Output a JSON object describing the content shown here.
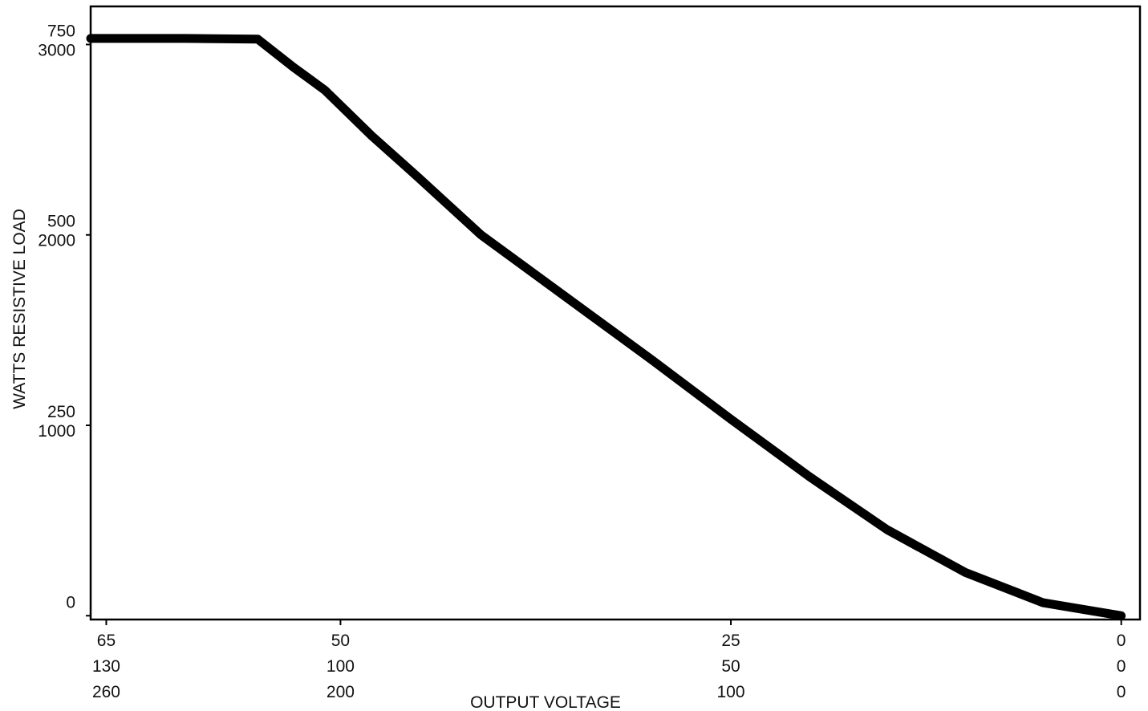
{
  "chart_data": {
    "type": "line",
    "title": "",
    "xlabel": "OUTPUT VOLTAGE",
    "ylabel": "WATTS RESISTIVE LOAD",
    "grid": false,
    "legend": "none",
    "line_color": "#000000",
    "x_reversed": true,
    "x_tick_rows": [
      [
        "65",
        "50",
        "25",
        "0"
      ],
      [
        "130",
        "100",
        "50",
        "0"
      ],
      [
        "260",
        "200",
        "100",
        "0"
      ]
    ],
    "x_tick_values": [
      65,
      50,
      25,
      0
    ],
    "y_tick_rows": [
      [
        "750",
        "500",
        "250",
        "0"
      ],
      [
        "3000",
        "2000",
        "1000",
        ""
      ]
    ],
    "y_tick_values": [
      750,
      500,
      250,
      0
    ],
    "xlim": [
      66,
      -1.2
    ],
    "ylim": [
      -5,
      800
    ],
    "series": [
      {
        "x": [
          66,
          60,
          55.3,
          53,
          51,
          48,
          45,
          41,
          37,
          34,
          30,
          25,
          20,
          15,
          10,
          5,
          0
        ],
        "y": [
          758,
          758,
          757,
          720,
          690,
          630,
          575,
          500,
          440,
          395,
          335,
          258,
          183,
          113,
          57,
          17,
          0
        ]
      }
    ]
  }
}
